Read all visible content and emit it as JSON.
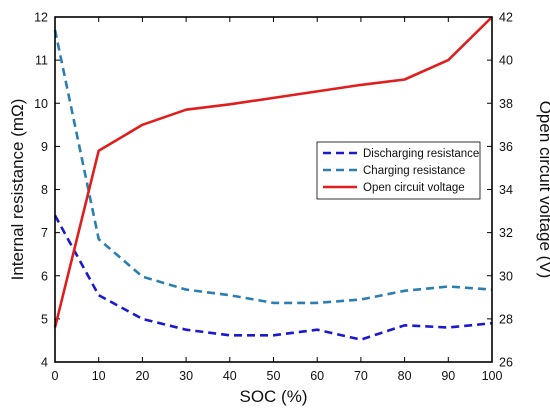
{
  "chart_data": {
    "type": "line",
    "xlabel": "SOC (%)",
    "ylabel_left": "Internal resistance (mΩ)",
    "ylabel_right": "Open circuit voltage (V)",
    "xlim": [
      0,
      100
    ],
    "ylim_left": [
      4,
      12
    ],
    "ylim_right": [
      26,
      42
    ],
    "x_ticks": [
      0,
      10,
      20,
      30,
      40,
      50,
      60,
      70,
      80,
      90,
      100
    ],
    "y_ticks_left": [
      4,
      5,
      6,
      7,
      8,
      9,
      10,
      11,
      12
    ],
    "y_ticks_right": [
      26,
      28,
      30,
      32,
      34,
      36,
      38,
      40,
      42
    ],
    "grid": false,
    "legend_position": "middle-right",
    "series": [
      {
        "name": "Discharging resistance",
        "axis": "left",
        "style": "dashed",
        "color": "#1a1acc",
        "x": [
          0,
          10,
          20,
          30,
          40,
          50,
          60,
          70,
          80,
          90,
          100
        ],
        "y": [
          7.4,
          5.55,
          5.0,
          4.75,
          4.62,
          4.62,
          4.75,
          4.52,
          4.85,
          4.8,
          4.9
        ]
      },
      {
        "name": "Charging resistance",
        "axis": "left",
        "style": "dashed",
        "color": "#2a7fb0",
        "x": [
          0,
          10,
          20,
          30,
          40,
          50,
          60,
          70,
          80,
          90,
          100
        ],
        "y": [
          11.7,
          6.85,
          5.98,
          5.68,
          5.55,
          5.37,
          5.37,
          5.45,
          5.65,
          5.75,
          5.68
        ]
      },
      {
        "name": "Open circuit voltage",
        "axis": "right",
        "style": "solid",
        "color": "#e01e1e",
        "x": [
          0,
          10,
          20,
          30,
          40,
          50,
          60,
          70,
          80,
          90,
          100
        ],
        "y": [
          27.6,
          35.8,
          37.0,
          37.7,
          37.95,
          38.25,
          38.55,
          38.85,
          39.1,
          40.0,
          42.0
        ]
      }
    ]
  }
}
